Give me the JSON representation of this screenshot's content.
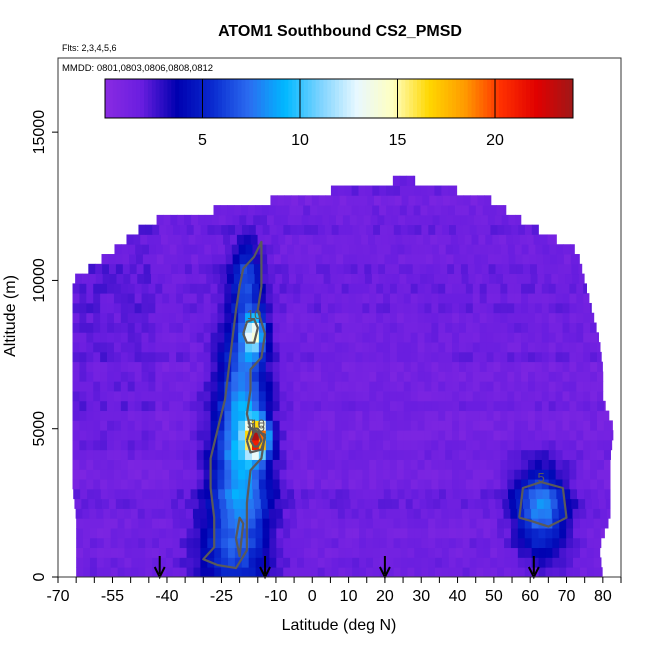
{
  "chart_data": {
    "type": "heatmap",
    "title": "ATOM1 Southbound CS2_PMSD",
    "subtitle_flights": "Flts: 2,3,4,5,6",
    "subtitle_dates": "MMDD: 0801,0803,0806,0808,0812",
    "xlabel": "Latitude (deg N)",
    "ylabel": "Altitude (m)",
    "xlim": [
      -70,
      85
    ],
    "ylim": [
      0,
      17500
    ],
    "x_ticks": [
      -70,
      -55,
      -40,
      -25,
      -10,
      0,
      10,
      20,
      30,
      40,
      50,
      60,
      70,
      80
    ],
    "x_tick_labels": [
      "-70",
      "-55",
      "-40",
      "-25",
      "-10",
      "0",
      "10",
      "20",
      "30",
      "40",
      "50",
      "60",
      "70",
      "80"
    ],
    "x_tick_minor": [
      -65,
      -60,
      -50,
      -45,
      -35,
      -30,
      -20,
      -15,
      -5,
      5,
      15,
      25,
      35,
      45,
      55,
      65,
      75,
      85
    ],
    "y_ticks": [
      0,
      5000,
      10000,
      15000
    ],
    "y_tick_labels": [
      "0",
      "5000",
      "10000",
      "15000"
    ],
    "colorbar": {
      "range": [
        0,
        24
      ],
      "ticks": [
        5,
        10,
        15,
        20
      ],
      "tick_labels": [
        "5",
        "10",
        "15",
        "20"
      ],
      "colors": [
        "#8a2be2",
        "#6a1ee0",
        "#0000b0",
        "#0a2bd0",
        "#2b6cf0",
        "#00b8ff",
        "#7fd4ff",
        "#e8f8ff",
        "#ffffc0",
        "#ffd700",
        "#ff9a00",
        "#ff3000",
        "#e00000",
        "#a01818"
      ]
    },
    "grid": false,
    "field": {
      "background_value": 1.5,
      "lat_bounds": [
        [
          0,
          -65,
          80
        ],
        [
          1000,
          -65,
          79
        ],
        [
          2000,
          -65,
          82
        ],
        [
          3000,
          -66,
          82
        ],
        [
          4000,
          -66,
          82
        ],
        [
          5000,
          -66,
          83
        ],
        [
          6000,
          -66,
          80
        ],
        [
          7000,
          -66,
          80
        ],
        [
          8000,
          -66,
          79
        ],
        [
          9000,
          -66,
          77
        ],
        [
          10000,
          -66,
          75
        ],
        [
          11000,
          -55,
          73
        ],
        [
          12000,
          -45,
          58
        ],
        [
          12800,
          -7,
          48
        ],
        [
          13400,
          24,
          27
        ]
      ],
      "features": [
        {
          "lat": -20,
          "alt": 3000,
          "slat": 6,
          "salt": 2500,
          "val": 7.5
        },
        {
          "lat": -19,
          "alt": 6500,
          "slat": 4,
          "salt": 2300,
          "val": 6
        },
        {
          "lat": -18,
          "alt": 10200,
          "slat": 2.5,
          "salt": 800,
          "val": 5
        },
        {
          "lat": -16,
          "alt": 8200,
          "slat": 2,
          "salt": 500,
          "val": 11
        },
        {
          "lat": -15,
          "alt": 4700,
          "slat": 2,
          "salt": 400,
          "val": 19
        },
        {
          "lat": -26,
          "alt": 900,
          "slat": 6,
          "salt": 900,
          "val": 3
        },
        {
          "lat": 63,
          "alt": 2300,
          "slat": 5,
          "salt": 1000,
          "val": 8
        },
        {
          "lat": -48,
          "alt": 8500,
          "slat": 12,
          "salt": 2500,
          "val": 1.5
        }
      ]
    },
    "contours": [
      {
        "label": "5",
        "points": [
          [
            -19,
            10400
          ],
          [
            -16,
            10800
          ],
          [
            -14,
            11300
          ],
          [
            -14,
            9800
          ],
          [
            -15,
            9000
          ],
          [
            -13,
            8200
          ],
          [
            -14,
            7400
          ],
          [
            -17,
            7000
          ],
          [
            -17,
            6300
          ],
          [
            -18,
            5500
          ],
          [
            -17,
            5000
          ],
          [
            -15,
            4900
          ],
          [
            -13,
            4800
          ],
          [
            -14,
            4000
          ],
          [
            -17,
            3600
          ],
          [
            -18,
            2500
          ],
          [
            -18,
            900
          ],
          [
            -21,
            300
          ],
          [
            -26,
            400
          ],
          [
            -30,
            600
          ],
          [
            -27,
            1000
          ],
          [
            -27,
            2000
          ],
          [
            -28,
            3000
          ],
          [
            -28,
            4000
          ],
          [
            -26,
            5000
          ],
          [
            -24,
            6000
          ],
          [
            -23,
            7000
          ],
          [
            -22,
            8000
          ],
          [
            -21,
            9000
          ],
          [
            -20,
            9800
          ],
          [
            -19,
            10400
          ]
        ]
      },
      {
        "label": "10",
        "points": [
          [
            -19,
            8200
          ],
          [
            -18,
            8600
          ],
          [
            -16,
            8700
          ],
          [
            -15,
            8400
          ],
          [
            -16,
            7900
          ],
          [
            -18,
            7900
          ],
          [
            -19,
            8200
          ]
        ]
      },
      {
        "label": "10",
        "points": [
          [
            -18,
            4600
          ],
          [
            -17,
            5000
          ],
          [
            -15,
            5000
          ],
          [
            -13,
            4700
          ],
          [
            -14,
            4300
          ],
          [
            -17,
            4200
          ],
          [
            -18,
            4600
          ]
        ]
      },
      {
        "label": "15",
        "points": [
          [
            -17,
            4600
          ],
          [
            -16,
            4900
          ],
          [
            -15,
            4900
          ],
          [
            -14,
            4600
          ],
          [
            -15,
            4400
          ],
          [
            -16,
            4400
          ],
          [
            -17,
            4600
          ]
        ]
      },
      {
        "label": "",
        "points": [
          [
            -21,
            1300
          ],
          [
            -20,
            2000
          ],
          [
            -19,
            1800
          ],
          [
            -20,
            700
          ],
          [
            -21,
            1300
          ]
        ]
      },
      {
        "label": "5",
        "points": [
          [
            57,
            2000
          ],
          [
            58,
            3000
          ],
          [
            63,
            3200
          ],
          [
            69,
            3000
          ],
          [
            70,
            2000
          ],
          [
            65,
            1700
          ],
          [
            60,
            1900
          ],
          [
            57,
            2000
          ]
        ]
      }
    ],
    "flight_markers": {
      "lats": [
        -42,
        -13,
        20,
        61
      ],
      "symbol": "arrow-down"
    }
  }
}
